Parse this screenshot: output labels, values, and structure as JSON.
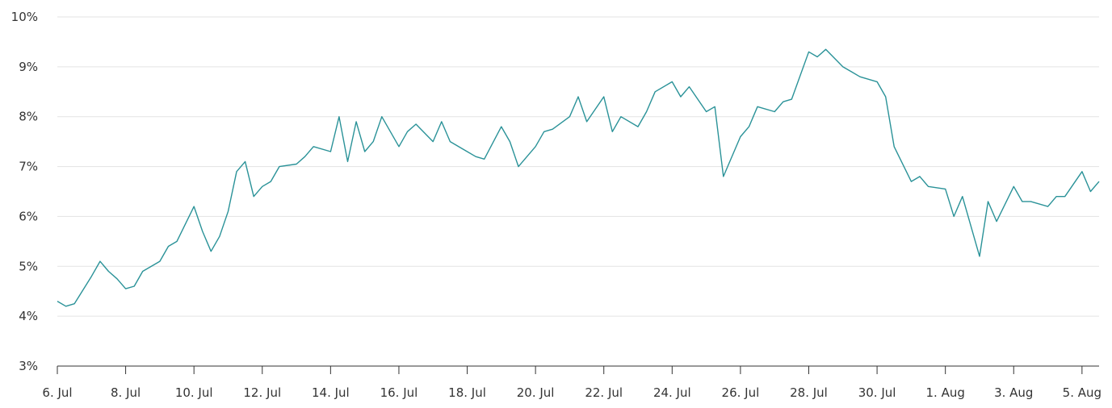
{
  "chart_data": {
    "type": "line",
    "title": "",
    "xlabel": "",
    "ylabel": "",
    "ylim": [
      3,
      10
    ],
    "y_ticks": [
      "3%",
      "4%",
      "5%",
      "6%",
      "7%",
      "8%",
      "9%",
      "10%"
    ],
    "y_tick_values": [
      3,
      4,
      5,
      6,
      7,
      8,
      9,
      10
    ],
    "x_ticks": [
      "6. Jul",
      "8. Jul",
      "10. Jul",
      "12. Jul",
      "14. Jul",
      "16. Jul",
      "18. Jul",
      "20. Jul",
      "22. Jul",
      "24. Jul",
      "26. Jul",
      "28. Jul",
      "30. Jul",
      "1. Aug",
      "3. Aug",
      "5. Aug"
    ],
    "x_tick_dates": [
      "2024-07-06",
      "2024-07-08",
      "2024-07-10",
      "2024-07-12",
      "2024-07-14",
      "2024-07-16",
      "2024-07-18",
      "2024-07-20",
      "2024-07-22",
      "2024-07-24",
      "2024-07-26",
      "2024-07-28",
      "2024-07-30",
      "2024-08-01",
      "2024-08-03",
      "2024-08-05"
    ],
    "xlim": [
      "2024-07-06 00:00",
      "2024-08-05 12:00"
    ],
    "grid": true,
    "legend": "none",
    "color": "#2a9298",
    "series": [
      {
        "x": [
          "2024-07-06 00:00",
          "2024-07-06 06:00",
          "2024-07-06 12:00",
          "2024-07-07 00:00",
          "2024-07-07 06:00",
          "2024-07-07 12:00",
          "2024-07-07 18:00",
          "2024-07-08 00:00",
          "2024-07-08 06:00",
          "2024-07-08 12:00",
          "2024-07-09 00:00",
          "2024-07-09 06:00",
          "2024-07-09 12:00",
          "2024-07-10 00:00",
          "2024-07-10 06:00",
          "2024-07-10 12:00",
          "2024-07-10 18:00",
          "2024-07-11 00:00",
          "2024-07-11 06:00",
          "2024-07-11 12:00",
          "2024-07-11 18:00",
          "2024-07-12 00:00",
          "2024-07-12 06:00",
          "2024-07-12 12:00",
          "2024-07-13 00:00",
          "2024-07-13 06:00",
          "2024-07-13 12:00",
          "2024-07-14 00:00",
          "2024-07-14 06:00",
          "2024-07-14 12:00",
          "2024-07-14 18:00",
          "2024-07-15 00:00",
          "2024-07-15 06:00",
          "2024-07-15 12:00",
          "2024-07-16 00:00",
          "2024-07-16 06:00",
          "2024-07-16 12:00",
          "2024-07-17 00:00",
          "2024-07-17 06:00",
          "2024-07-17 12:00",
          "2024-07-18 00:00",
          "2024-07-18 06:00",
          "2024-07-18 12:00",
          "2024-07-19 00:00",
          "2024-07-19 06:00",
          "2024-07-19 12:00",
          "2024-07-20 00:00",
          "2024-07-20 06:00",
          "2024-07-20 12:00",
          "2024-07-21 00:00",
          "2024-07-21 06:00",
          "2024-07-21 12:00",
          "2024-07-22 00:00",
          "2024-07-22 06:00",
          "2024-07-22 12:00",
          "2024-07-23 00:00",
          "2024-07-23 06:00",
          "2024-07-23 12:00",
          "2024-07-24 00:00",
          "2024-07-24 06:00",
          "2024-07-24 12:00",
          "2024-07-25 00:00",
          "2024-07-25 06:00",
          "2024-07-25 12:00",
          "2024-07-26 00:00",
          "2024-07-26 06:00",
          "2024-07-26 12:00",
          "2024-07-27 00:00",
          "2024-07-27 06:00",
          "2024-07-27 12:00",
          "2024-07-28 00:00",
          "2024-07-28 06:00",
          "2024-07-28 12:00",
          "2024-07-29 00:00",
          "2024-07-29 06:00",
          "2024-07-29 12:00",
          "2024-07-30 00:00",
          "2024-07-30 06:00",
          "2024-07-30 12:00",
          "2024-07-31 00:00",
          "2024-07-31 06:00",
          "2024-07-31 12:00",
          "2024-08-01 00:00",
          "2024-08-01 06:00",
          "2024-08-01 12:00",
          "2024-08-02 00:00",
          "2024-08-02 06:00",
          "2024-08-02 12:00",
          "2024-08-03 00:00",
          "2024-08-03 06:00",
          "2024-08-03 12:00",
          "2024-08-04 00:00",
          "2024-08-04 06:00",
          "2024-08-04 12:00",
          "2024-08-05 00:00",
          "2024-08-05 06:00",
          "2024-08-05 12:00"
        ],
        "values": [
          4.3,
          4.2,
          4.25,
          4.8,
          5.1,
          4.9,
          4.75,
          4.55,
          4.6,
          4.9,
          5.1,
          5.4,
          5.5,
          6.2,
          5.7,
          5.3,
          5.6,
          6.1,
          6.9,
          7.1,
          6.4,
          6.6,
          6.7,
          7.0,
          7.05,
          7.2,
          7.4,
          7.3,
          8.0,
          7.1,
          7.9,
          7.3,
          7.5,
          8.0,
          7.4,
          7.7,
          7.85,
          7.5,
          7.9,
          7.5,
          7.3,
          7.2,
          7.15,
          7.8,
          7.5,
          7.0,
          7.4,
          7.7,
          7.75,
          8.0,
          8.4,
          7.9,
          8.4,
          7.7,
          8.0,
          7.8,
          8.1,
          8.5,
          8.7,
          8.4,
          8.6,
          8.1,
          8.2,
          6.8,
          7.6,
          7.8,
          8.2,
          8.1,
          8.3,
          8.35,
          9.3,
          9.2,
          9.35,
          9.0,
          8.9,
          8.8,
          8.7,
          8.4,
          7.4,
          6.7,
          6.8,
          6.6,
          6.55,
          6.0,
          6.4,
          5.2,
          6.3,
          5.9,
          6.6,
          6.3,
          6.3,
          6.2,
          6.4,
          6.4,
          6.9,
          6.5,
          6.7
        ]
      }
    ]
  }
}
